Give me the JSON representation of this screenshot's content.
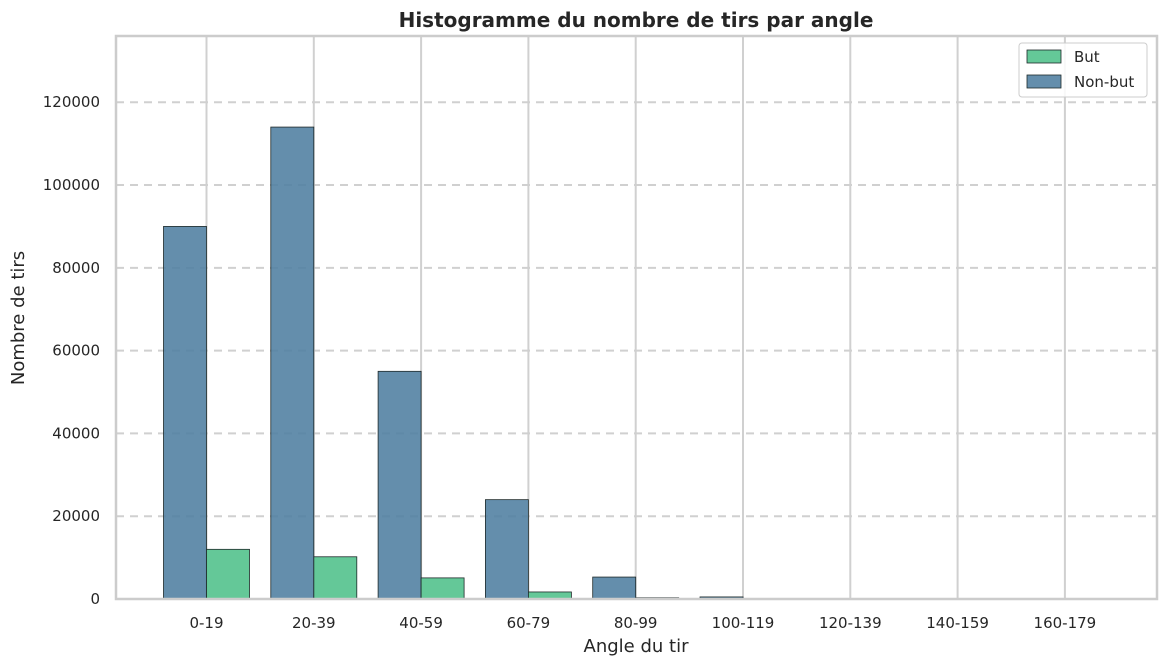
{
  "chart_data": {
    "type": "bar",
    "title": "Histogramme du nombre de tirs par angle",
    "xlabel": "Angle du tir",
    "ylabel": "Nombre de tirs",
    "categories": [
      "0-19",
      "20-39",
      "40-59",
      "60-79",
      "80-99",
      "100-119",
      "120-139",
      "140-159",
      "160-179"
    ],
    "series": [
      {
        "name": "Non-but",
        "color": "#4f7ea0",
        "values": [
          90000,
          114000,
          55000,
          24000,
          5300,
          500,
          0,
          0,
          0
        ]
      },
      {
        "name": "But",
        "color": "#4ec08a",
        "values": [
          12000,
          10200,
          5100,
          1700,
          300,
          50,
          0,
          0,
          0
        ]
      }
    ],
    "ylim": [
      0,
      136000
    ],
    "yticks": [
      0,
      20000,
      40000,
      60000,
      80000,
      100000,
      120000
    ],
    "grid": {
      "y": true,
      "y_style": "dashed",
      "x": true
    },
    "legend": {
      "placement": "top-right",
      "entries": [
        {
          "name": "But",
          "color": "#4ec08a"
        },
        {
          "name": "Non-but",
          "color": "#4f7ea0"
        }
      ]
    }
  }
}
